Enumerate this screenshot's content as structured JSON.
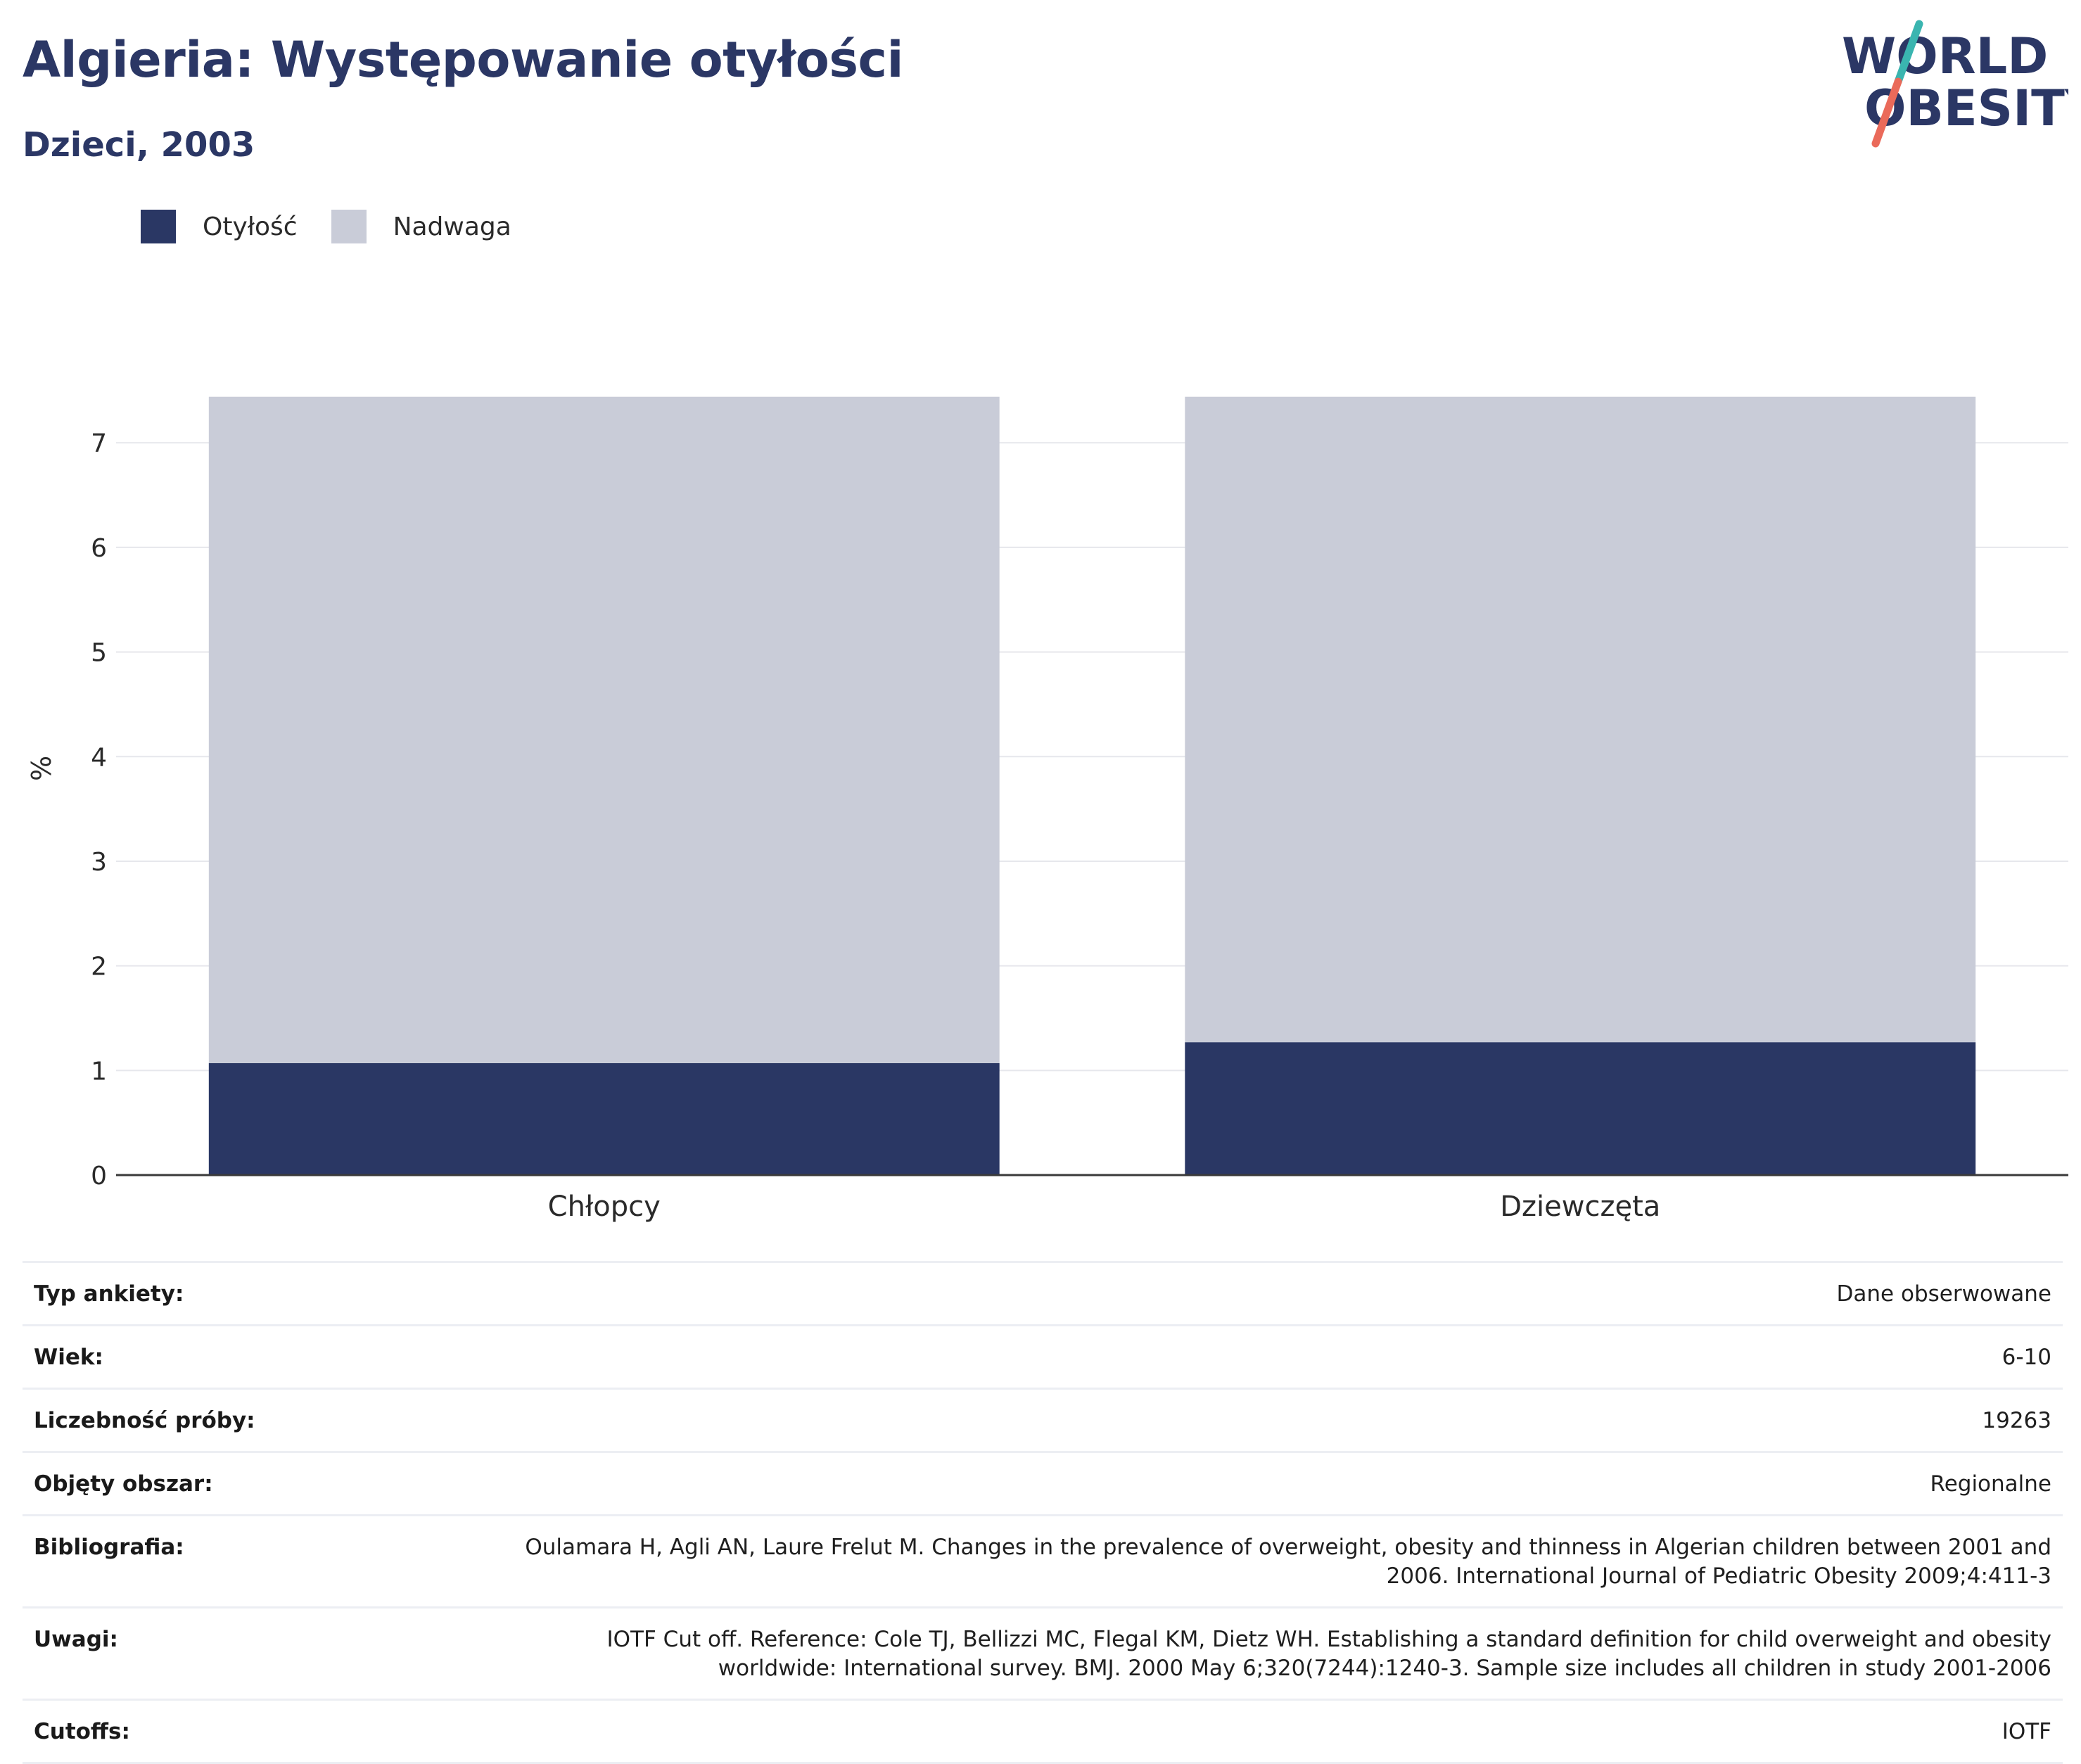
{
  "header": {
    "title": "Algieria: Występowanie otyłości",
    "subtitle": "Dzieci, 2003"
  },
  "logo": {
    "line1": "WORLD",
    "line2": "OBESITY",
    "colors": {
      "text": "#2b3765",
      "slash_top": "#3ab5b0",
      "slash_bottom": "#ea6a5a"
    }
  },
  "legend": [
    {
      "label": "Otyłość",
      "color": "#2a3764"
    },
    {
      "label": "Nadwaga",
      "color": "#c9ccd8"
    }
  ],
  "chart_data": {
    "type": "bar",
    "stacked": true,
    "categories": [
      "Chłopcy",
      "Dziewczęta"
    ],
    "series": [
      {
        "name": "Otyłość",
        "values": [
          1.07,
          1.27
        ],
        "color": "#2a3764"
      },
      {
        "name": "Nadwaga",
        "values": [
          6.37,
          6.17
        ],
        "color": "#c9ccd8"
      }
    ],
    "ylabel": "%",
    "ylim": [
      0,
      7.6
    ],
    "yticks": [
      0,
      1,
      2,
      3,
      4,
      5,
      6,
      7
    ],
    "grid": true,
    "legend_position": "top-left"
  },
  "details": [
    {
      "label": "Typ ankiety:",
      "value": "Dane obserwowane"
    },
    {
      "label": "Wiek:",
      "value": "6-10"
    },
    {
      "label": "Liczebność próby:",
      "value": "19263"
    },
    {
      "label": "Objęty obszar:",
      "value": "Regionalne"
    },
    {
      "label": "Bibliografia:",
      "value": "Oulamara H, Agli AN, Laure Frelut M. Changes in the prevalence of overweight, obesity and thinness in Algerian children between 2001 and 2006. International Journal of Pediatric Obesity 2009;4:411-3"
    },
    {
      "label": "Uwagi:",
      "value": "IOTF Cut off. Reference: Cole TJ, Bellizzi MC, Flegal KM, Dietz WH. Establishing a standard definition for child overweight and obesity worldwide: International survey. BMJ. 2000 May 6;320(7244):1240-3. Sample size includes all children in study 2001-2006"
    },
    {
      "label": "Cutoffs:",
      "value": "IOTF"
    }
  ]
}
